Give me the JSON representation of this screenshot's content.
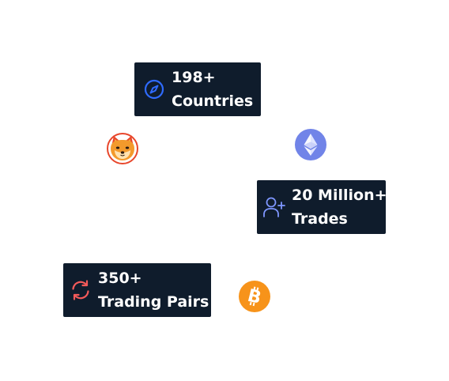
{
  "stats": [
    {
      "value": "198+",
      "label": "Countries",
      "icon": "compass-icon",
      "icon_color": "#2f6bff"
    },
    {
      "value": "20 Million+",
      "label": "Trades",
      "icon": "user-plus-icon",
      "icon_color": "#7f97ff"
    },
    {
      "value": "350+",
      "label": "Trading Pairs",
      "icon": "refresh-icon",
      "icon_color": "#f25a5a"
    }
  ],
  "coins": [
    {
      "name": "shiba-inu-coin",
      "icon": "shiba-inu-icon",
      "color": "#e8472c"
    },
    {
      "name": "ethereum-coin",
      "icon": "ethereum-icon",
      "color": "#7184e8"
    },
    {
      "name": "bitcoin-coin",
      "icon": "bitcoin-icon",
      "color": "#f7931a"
    }
  ],
  "colors": {
    "card_background": "#0f1c2c",
    "card_text": "#ffffff",
    "page_background": "#ffffff"
  }
}
